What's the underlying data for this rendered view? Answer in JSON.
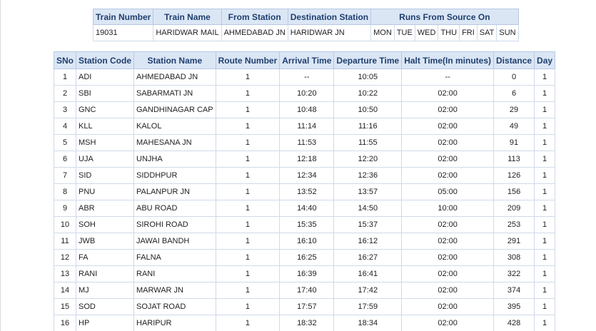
{
  "summary": {
    "headers": {
      "train_number": "Train Number",
      "train_name": "Train Name",
      "from_station": "From Station",
      "destination_station": "Destination Station",
      "runs_from_source_on": "Runs From Source On"
    },
    "train_number": "19031",
    "train_name": "HARIDWAR MAIL",
    "from_station": "AHMEDABAD JN",
    "destination_station": "HARIDWAR JN",
    "days": [
      "MON",
      "TUE",
      "WED",
      "THU",
      "FRI",
      "SAT",
      "SUN"
    ]
  },
  "schedule": {
    "headers": [
      "SNo",
      "Station Code",
      "Station Name",
      "Route Number",
      "Arrival Time",
      "Departure Time",
      "Halt Time(In minutes)",
      "Distance",
      "Day"
    ],
    "rows": [
      [
        "1",
        "ADI",
        "AHMEDABAD JN",
        "1",
        "--",
        "10:05",
        "--",
        "0",
        "1"
      ],
      [
        "2",
        "SBI",
        "SABARMATI JN",
        "1",
        "10:20",
        "10:22",
        "02:00",
        "6",
        "1"
      ],
      [
        "3",
        "GNC",
        "GANDHINAGAR CAP",
        "1",
        "10:48",
        "10:50",
        "02:00",
        "29",
        "1"
      ],
      [
        "4",
        "KLL",
        "KALOL",
        "1",
        "11:14",
        "11:16",
        "02:00",
        "49",
        "1"
      ],
      [
        "5",
        "MSH",
        "MAHESANA JN",
        "1",
        "11:53",
        "11:55",
        "02:00",
        "91",
        "1"
      ],
      [
        "6",
        "UJA",
        "UNJHA",
        "1",
        "12:18",
        "12:20",
        "02:00",
        "113",
        "1"
      ],
      [
        "7",
        "SID",
        "SIDDHPUR",
        "1",
        "12:34",
        "12:36",
        "02:00",
        "126",
        "1"
      ],
      [
        "8",
        "PNU",
        "PALANPUR JN",
        "1",
        "13:52",
        "13:57",
        "05:00",
        "156",
        "1"
      ],
      [
        "9",
        "ABR",
        "ABU ROAD",
        "1",
        "14:40",
        "14:50",
        "10:00",
        "209",
        "1"
      ],
      [
        "10",
        "SOH",
        "SIROHI ROAD",
        "1",
        "15:35",
        "15:37",
        "02:00",
        "253",
        "1"
      ],
      [
        "11",
        "JWB",
        "JAWAI BANDH",
        "1",
        "16:10",
        "16:12",
        "02:00",
        "291",
        "1"
      ],
      [
        "12",
        "FA",
        "FALNA",
        "1",
        "16:25",
        "16:27",
        "02:00",
        "308",
        "1"
      ],
      [
        "13",
        "RANI",
        "RANI",
        "1",
        "16:39",
        "16:41",
        "02:00",
        "322",
        "1"
      ],
      [
        "14",
        "MJ",
        "MARWAR JN",
        "1",
        "17:40",
        "17:42",
        "02:00",
        "374",
        "1"
      ],
      [
        "15",
        "SOD",
        "SOJAT ROAD",
        "1",
        "17:57",
        "17:59",
        "02:00",
        "395",
        "1"
      ],
      [
        "16",
        "HP",
        "HARIPUR",
        "1",
        "18:32",
        "18:34",
        "02:00",
        "428",
        "1"
      ]
    ]
  }
}
